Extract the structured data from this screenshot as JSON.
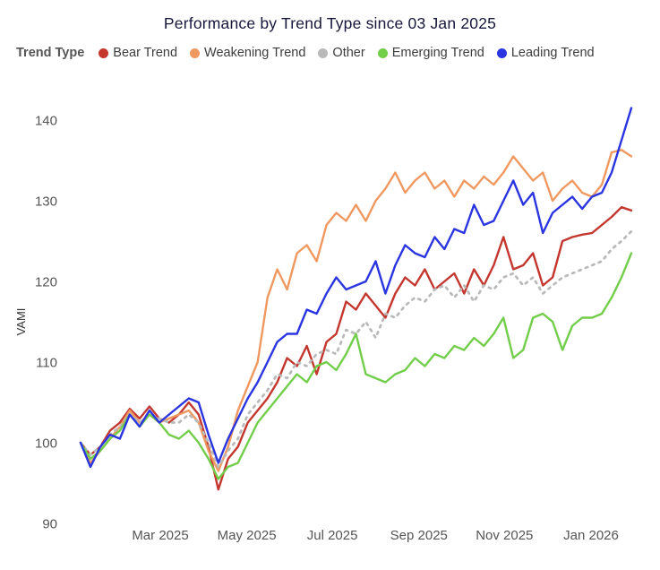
{
  "title": "Performance by Trend Type since 03 Jan 2025",
  "legend": {
    "label": "Trend Type"
  },
  "chart_data": {
    "type": "line",
    "title": "Performance by Trend Type since 03 Jan 2025",
    "xlabel": "",
    "ylabel": "VAMI",
    "x_start_date": "03 Jan 2025",
    "x_frequency": "weekly",
    "ylim": [
      90,
      143
    ],
    "yticks": [
      90,
      100,
      110,
      120,
      130,
      140
    ],
    "xticks": [
      {
        "index": 8.1,
        "label": "Mar 2025"
      },
      {
        "index": 16.9,
        "label": "May 2025"
      },
      {
        "index": 25.6,
        "label": "Jul 2025"
      },
      {
        "index": 34.4,
        "label": "Sep 2025"
      },
      {
        "index": 43.1,
        "label": "Nov 2025"
      },
      {
        "index": 51.9,
        "label": "Jan 2026"
      }
    ],
    "grid": false,
    "legend_position": "top-left",
    "series": [
      {
        "name": "Bear Trend",
        "color": "#c3372f",
        "line_style": "solid",
        "values": [
          100,
          98.5,
          99.5,
          101.5,
          102.5,
          104.2,
          103,
          104.5,
          103,
          102.5,
          103.5,
          105,
          103.5,
          99.5,
          94.2,
          98,
          99.5,
          102.5,
          104,
          105.5,
          107.5,
          110.5,
          109.5,
          112,
          108.5,
          112.5,
          113.5,
          117.5,
          116.5,
          118.5,
          117,
          115.5,
          118.5,
          120.5,
          119.5,
          121.5,
          119,
          120,
          121,
          118.5,
          121.5,
          119.5,
          122,
          125.5,
          121.5,
          122,
          123.5,
          119.5,
          120.5,
          125,
          125.5,
          125.8,
          126,
          127,
          128,
          129.2,
          128.8
        ]
      },
      {
        "name": "Weakening Trend",
        "color": "#ef9960",
        "line_style": "solid",
        "values": [
          100,
          97.5,
          99,
          100.5,
          102,
          104,
          102.5,
          103.5,
          102.5,
          103,
          103.5,
          104,
          102.5,
          99,
          96.5,
          99.5,
          104,
          107,
          110,
          118,
          121.5,
          119,
          123.5,
          124.5,
          122.5,
          127,
          128.5,
          127.5,
          129.5,
          127.5,
          130,
          131.5,
          133.5,
          131,
          132.5,
          133.5,
          131.5,
          132.5,
          130.5,
          132.5,
          131.5,
          133,
          132,
          133.5,
          135.5,
          134,
          132.5,
          133.5,
          130,
          131.5,
          132.5,
          131,
          130.5,
          132,
          136,
          136.3,
          135.5
        ]
      },
      {
        "name": "Other",
        "color": "#b9b9b9",
        "line_style": "dashed",
        "values": [
          100,
          98.5,
          99.5,
          101,
          102,
          103.5,
          102.5,
          103.5,
          103,
          102.5,
          102.5,
          103.5,
          102.5,
          100,
          97,
          99,
          100.5,
          103.5,
          105,
          106.5,
          108.5,
          108,
          110,
          109.5,
          111,
          111.5,
          111,
          114,
          113.5,
          115,
          113,
          116,
          115.5,
          117,
          118,
          117.5,
          119,
          119.5,
          118,
          119.5,
          117.5,
          119.5,
          119,
          120.5,
          121,
          119.5,
          120.5,
          118.5,
          119.5,
          120.5,
          121,
          121.5,
          122,
          122.5,
          124,
          125,
          126.2
        ]
      },
      {
        "name": "Emerging Trend",
        "color": "#72ce4a",
        "line_style": "solid",
        "values": [
          100,
          98,
          99,
          100.5,
          101.5,
          103.5,
          102,
          103.5,
          102.5,
          101,
          100.5,
          101.5,
          100,
          98,
          95.5,
          97,
          97.5,
          100,
          102.5,
          104,
          105.5,
          107,
          108.5,
          107.5,
          109.5,
          110,
          109,
          111,
          113.5,
          108.5,
          108,
          107.5,
          108.5,
          109,
          110.5,
          109.5,
          111,
          110.5,
          112,
          111.5,
          113,
          112,
          113.5,
          115.5,
          110.5,
          111.5,
          115.5,
          116,
          115,
          111.5,
          114.5,
          115.5,
          115.5,
          116,
          118,
          120.5,
          123.5
        ]
      },
      {
        "name": "Leading Trend",
        "color": "#2a35e0",
        "line_style": "solid",
        "values": [
          100,
          97,
          99.5,
          101,
          100.5,
          103.5,
          102,
          104,
          102.5,
          103.5,
          104.5,
          105.5,
          105,
          101,
          97.5,
          100.5,
          103,
          105.5,
          107.5,
          110,
          112.5,
          113.5,
          113.5,
          116.5,
          116,
          118.5,
          120.5,
          119,
          119.5,
          120,
          122.5,
          118.5,
          122,
          124.5,
          123.5,
          123,
          125.5,
          124,
          126.5,
          126,
          129.5,
          127,
          127.5,
          130,
          132.5,
          129.5,
          131,
          126,
          128.5,
          129.5,
          130.5,
          129,
          130.5,
          131,
          133.5,
          137.5,
          141.5
        ]
      }
    ]
  }
}
